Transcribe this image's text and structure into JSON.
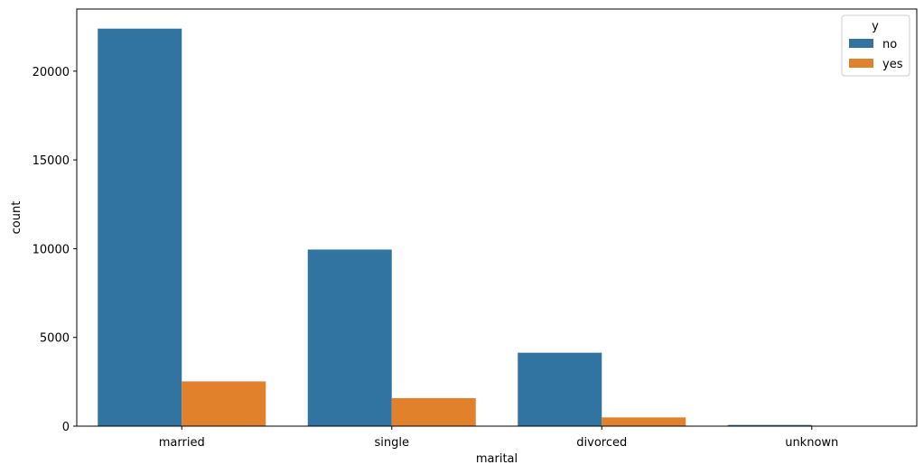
{
  "chart_data": {
    "type": "bar",
    "title": "",
    "xlabel": "marital",
    "ylabel": "count",
    "categories": [
      "married",
      "single",
      "divorced",
      "unknown"
    ],
    "series": [
      {
        "name": "no",
        "color": "#3274a1",
        "values": [
          22396,
          9948,
          4136,
          68
        ]
      },
      {
        "name": "yes",
        "color": "#e1812c",
        "values": [
          2521,
          1580,
          491,
          12
        ]
      }
    ],
    "ylim": [
      0,
      23500
    ],
    "yticks": [
      0,
      5000,
      10000,
      15000,
      20000
    ],
    "ytick_labels": [
      "0",
      "5000",
      "10000",
      "15000",
      "20000"
    ],
    "legend": {
      "title": "y",
      "placement": "top-right"
    },
    "grid": false
  }
}
